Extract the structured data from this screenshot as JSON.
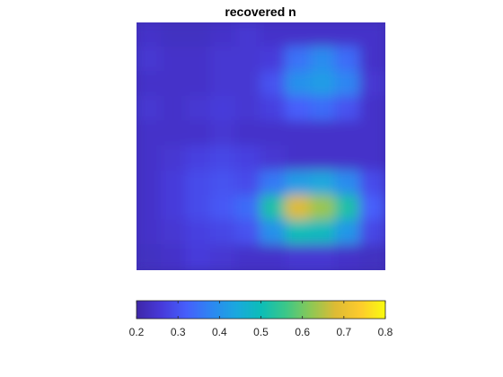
{
  "chart_data": {
    "type": "heatmap",
    "title": "recovered n",
    "xlabel": "",
    "ylabel": "",
    "colormap": "parula",
    "axes_visible": false,
    "clim": [
      0.2,
      0.8
    ],
    "colorbar": {
      "location": "bottom",
      "ticks": [
        0.2,
        0.3,
        0.4,
        0.5,
        0.6,
        0.7,
        0.8
      ],
      "tick_labels": [
        "0.2",
        "0.3",
        "0.4",
        "0.5",
        "0.6",
        "0.7",
        "0.8"
      ]
    },
    "grid_size": [
      10,
      10
    ],
    "rows_top_to_bottom": [
      [
        0.24,
        0.23,
        0.23,
        0.24,
        0.25,
        0.24,
        0.24,
        0.24,
        0.24,
        0.24
      ],
      [
        0.25,
        0.24,
        0.24,
        0.25,
        0.25,
        0.26,
        0.35,
        0.39,
        0.34,
        0.24
      ],
      [
        0.24,
        0.24,
        0.24,
        0.25,
        0.25,
        0.3,
        0.4,
        0.42,
        0.38,
        0.25
      ],
      [
        0.25,
        0.24,
        0.25,
        0.26,
        0.25,
        0.27,
        0.32,
        0.34,
        0.3,
        0.24
      ],
      [
        0.24,
        0.24,
        0.24,
        0.25,
        0.24,
        0.24,
        0.24,
        0.24,
        0.24,
        0.24
      ],
      [
        0.24,
        0.25,
        0.27,
        0.28,
        0.27,
        0.25,
        0.24,
        0.24,
        0.24,
        0.24
      ],
      [
        0.24,
        0.26,
        0.29,
        0.3,
        0.29,
        0.36,
        0.42,
        0.44,
        0.39,
        0.29
      ],
      [
        0.24,
        0.26,
        0.29,
        0.31,
        0.34,
        0.52,
        0.68,
        0.63,
        0.52,
        0.32
      ],
      [
        0.24,
        0.25,
        0.27,
        0.28,
        0.3,
        0.4,
        0.5,
        0.49,
        0.41,
        0.28
      ],
      [
        0.23,
        0.24,
        0.26,
        0.25,
        0.24,
        0.24,
        0.25,
        0.25,
        0.24,
        0.23
      ]
    ]
  }
}
